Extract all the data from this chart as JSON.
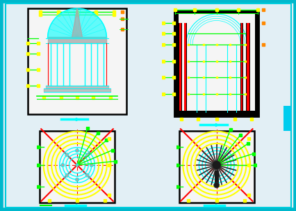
{
  "bg": "#ffffff",
  "fig_bg": "#e8f4f8",
  "cyan": "#00ffff",
  "green": "#00ff00",
  "yellow": "#ffff00",
  "red": "#ff0000",
  "orange": "#ff8800",
  "dark": "#111111",
  "gray": "#aaaaaa",
  "darkgray": "#555555",
  "white": "#f8f8f8",
  "panel_bg": "#f5f5f5"
}
